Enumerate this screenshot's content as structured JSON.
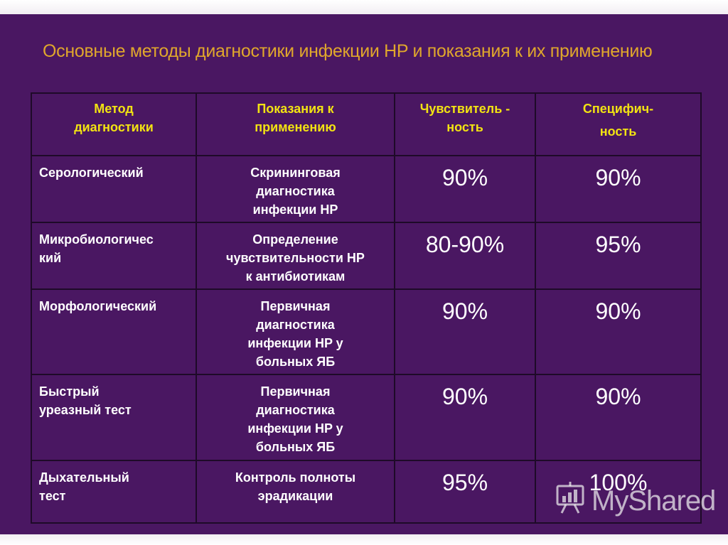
{
  "title": "Основные методы диагностики инфекции HP и показания к их применению",
  "headers": {
    "method_line1": "Метод",
    "method_line2": "диагностики",
    "indication_line1": "Показания к",
    "indication_line2": "применению",
    "sensitivity_line1": "Чувствитель -",
    "sensitivity_line2": "ность",
    "specificity_line1": "Специфич-",
    "specificity_line2": "ность"
  },
  "rows": [
    {
      "method_lines": [
        "Серологический"
      ],
      "indication_lines": [
        "Скрининговая",
        "диагностика",
        "инфекции HP"
      ],
      "sensitivity": "90%",
      "specificity": "90%"
    },
    {
      "method_lines": [
        "Микробиологичес",
        "кий"
      ],
      "indication_lines": [
        "Определение",
        "чувствительности HP",
        "к антибиотикам"
      ],
      "sensitivity": "80-90%",
      "specificity": "95%"
    },
    {
      "method_lines": [
        "Морфологический"
      ],
      "indication_lines": [
        "Первичная",
        "диагностика",
        "инфекции HP у",
        "больных ЯБ"
      ],
      "sensitivity": "90%",
      "specificity": "90%"
    },
    {
      "method_lines": [
        "Быстрый",
        "уреазный тест"
      ],
      "indication_lines": [
        "Первичная",
        "диагностика",
        "инфекции HP у",
        "больных ЯБ"
      ],
      "sensitivity": "90%",
      "specificity": "90%"
    },
    {
      "method_lines": [
        "Дыхательный",
        "тест"
      ],
      "indication_lines": [
        "Контроль полноты",
        "эрадикации"
      ],
      "sensitivity": "95%",
      "specificity": "100%"
    }
  ],
  "watermark": {
    "text": "MyShared",
    "icon": "presentation-board-icon"
  },
  "colors": {
    "background": "#4a1762",
    "title": "#e0a72c",
    "header_text": "#f2e312",
    "body_text": "#ffffff",
    "grid_lines": "#1e0a28"
  }
}
